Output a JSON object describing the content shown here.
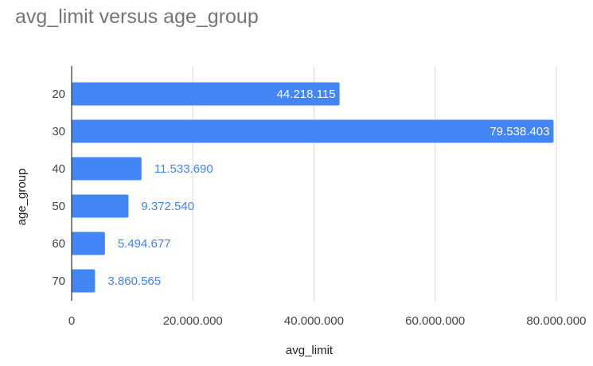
{
  "chart_data": {
    "type": "bar",
    "orientation": "horizontal",
    "title": "avg_limit versus age_group",
    "xlabel": "avg_limit",
    "ylabel": "age_group",
    "categories": [
      "20",
      "30",
      "40",
      "50",
      "60",
      "70"
    ],
    "values": [
      44218115,
      79538403,
      11533690,
      9372540,
      5494677,
      3860565
    ],
    "value_labels": [
      "44.218.115",
      "79.538.403",
      "11.533.690",
      "9.372.540",
      "5.494.677",
      "3.860.565"
    ],
    "xlim": [
      0,
      85000000
    ],
    "xticks": [
      0,
      20000000,
      40000000,
      60000000,
      80000000
    ],
    "xtick_labels": [
      "0",
      "20.000.000",
      "40.000.000",
      "60.000.000",
      "80.000.000"
    ],
    "grid": true,
    "legend": "none",
    "bar_color": "#4285f4",
    "label_inside_color": "#ffffff",
    "label_outside_color": "#4285f4"
  }
}
